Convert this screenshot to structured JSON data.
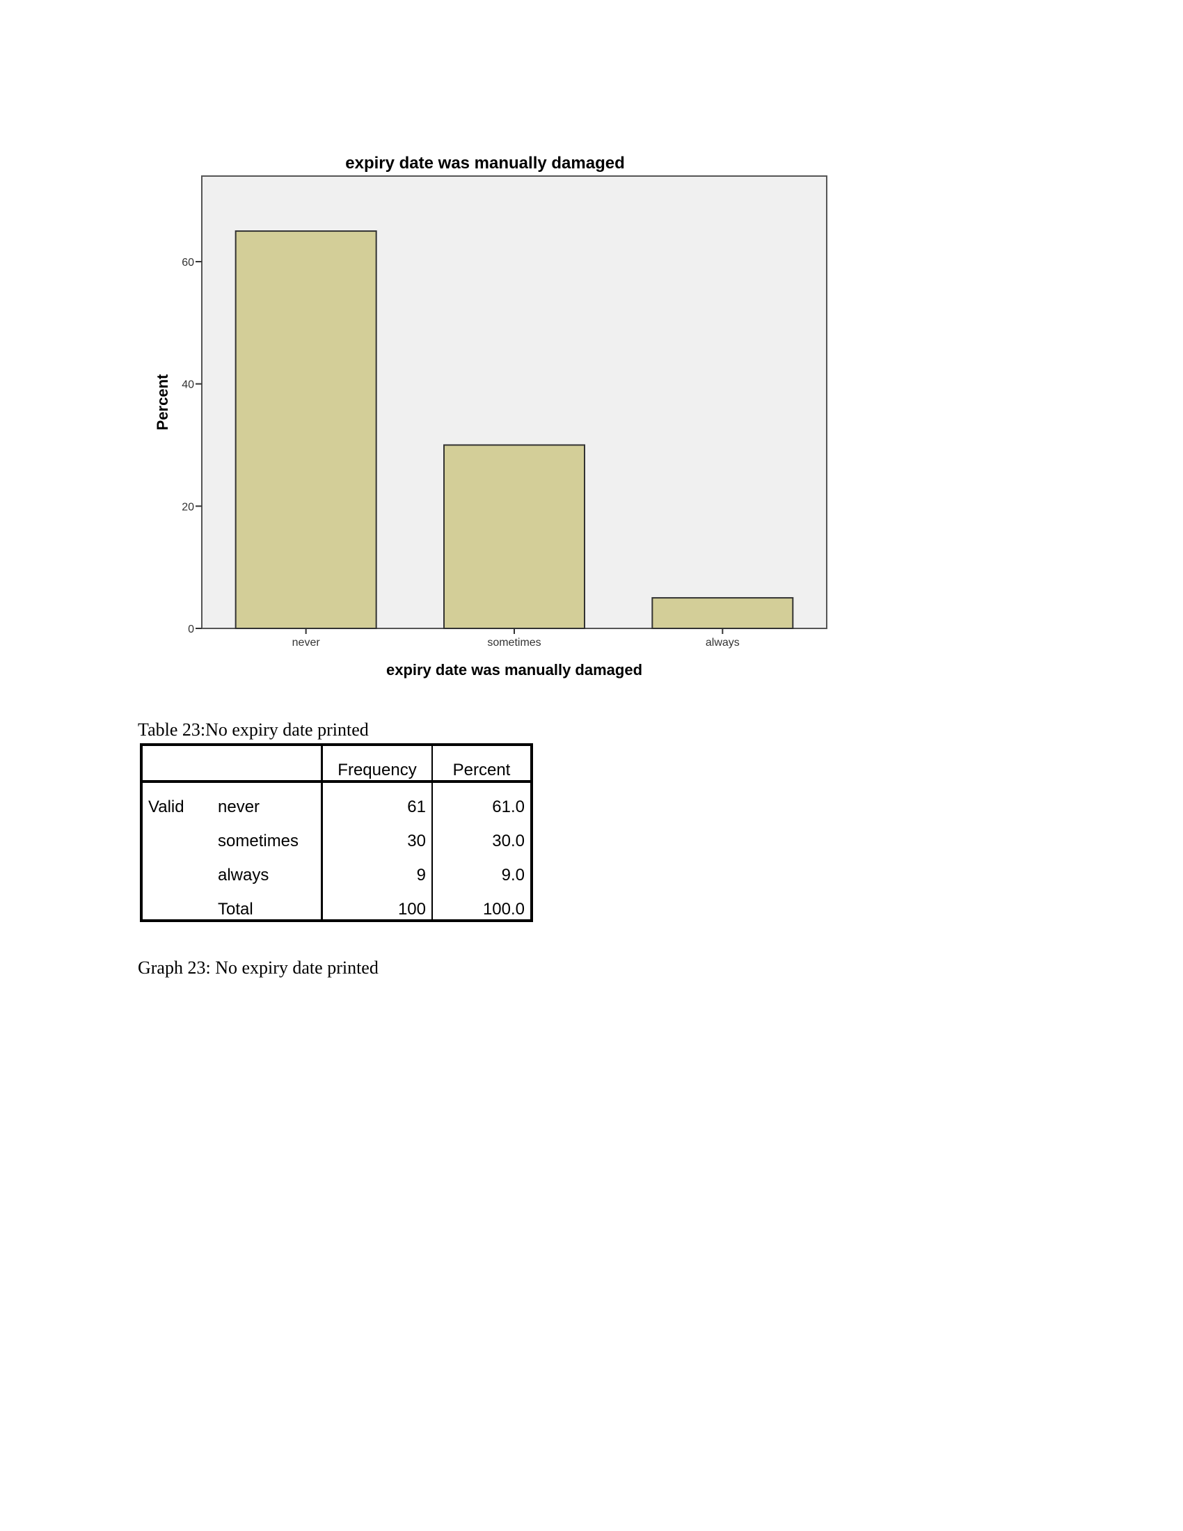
{
  "chart_data": {
    "type": "bar",
    "title": "expiry date was manually damaged",
    "xlabel": "expiry date was manually damaged",
    "ylabel": "Percent",
    "categories": [
      "never",
      "sometimes",
      "always"
    ],
    "values": [
      65,
      30,
      5
    ],
    "ylim": [
      0,
      74
    ],
    "yticks": [
      0,
      20,
      40,
      60
    ],
    "grid": false,
    "colors": {
      "bar": "#d3ce98",
      "plot_bg": "#f0f0f0",
      "edge": "#333333"
    }
  },
  "table_caption": "Table 23:No expiry date printed",
  "table": {
    "headers": [
      "Frequency",
      "Percent"
    ],
    "group_label": "Valid",
    "rows": [
      {
        "label": "never",
        "frequency": "61",
        "percent": "61.0"
      },
      {
        "label": "sometimes",
        "frequency": "30",
        "percent": "30.0"
      },
      {
        "label": "always",
        "frequency": "9",
        "percent": "9.0"
      },
      {
        "label": "Total",
        "frequency": "100",
        "percent": "100.0"
      }
    ]
  },
  "graph_caption": "Graph 23: No expiry date printed"
}
